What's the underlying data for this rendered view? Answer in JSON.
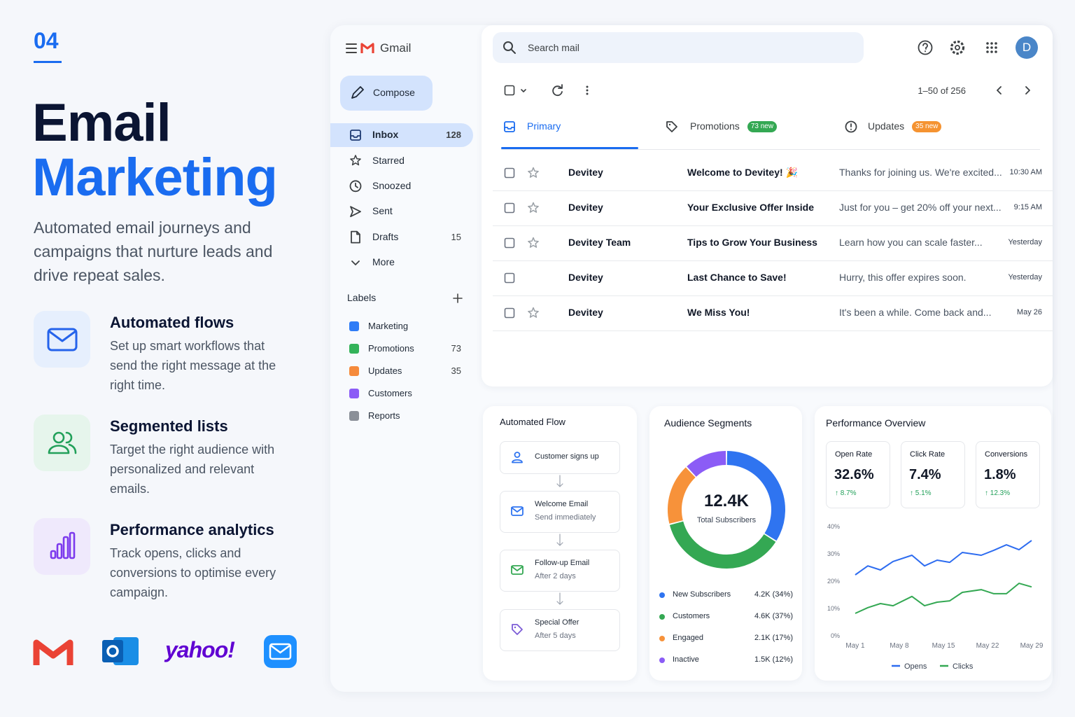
{
  "hero": {
    "number": "04",
    "title": [
      "Email",
      "Marketing"
    ],
    "description": "Automated email journeys and campaigns that nurture leads and drive repeat sales."
  },
  "features": [
    {
      "title": "Automated flows",
      "text": "Set up smart workflows that send the right message at the right time."
    },
    {
      "title": "Segmented lists",
      "text": "Target the right audience with personalized and relevant emails."
    },
    {
      "title": "Performance analytics",
      "text": "Track opens, clicks and conversions to optimise every campaign."
    }
  ],
  "brands": {
    "yahoo": "yahoo!"
  },
  "gmail": {
    "app": "Gmail",
    "compose": "Compose",
    "search": "Search mail",
    "avatar": "D",
    "pagination": "1–50 of 256",
    "nav": [
      {
        "label": "Inbox",
        "count": 128,
        "selected": true
      },
      {
        "label": "Starred"
      },
      {
        "label": "Snoozed"
      },
      {
        "label": "Sent"
      },
      {
        "label": "Drafts",
        "count": 15
      },
      {
        "label": "More"
      }
    ],
    "labels_heading": "Labels",
    "labels": [
      {
        "name": "Marketing",
        "color": "#2f7cf6"
      },
      {
        "name": "Promotions",
        "color": "#34b35a",
        "count": 73
      },
      {
        "name": "Updates",
        "color": "#f58a3c",
        "count": 35
      },
      {
        "name": "Customers",
        "color": "#8b5cf6"
      },
      {
        "name": "Reports",
        "color": "#8a8f98"
      }
    ],
    "tabs": [
      {
        "name": "Primary",
        "selected": true
      },
      {
        "name": "Promotions",
        "badge": "73 new",
        "badge_color": "#34a853"
      },
      {
        "name": "Updates",
        "badge": "35 new",
        "badge_color": "#f59331"
      }
    ],
    "emails": [
      {
        "sender": "Devitey",
        "subject": "Welcome to Devitey! 🎉",
        "snippet": "Thanks for joining us. We're excited...",
        "time": "10:30 AM",
        "star": true
      },
      {
        "sender": "Devitey",
        "subject": "Your Exclusive Offer Inside",
        "snippet": "Just for you – get 20% off your next...",
        "time": "9:15 AM",
        "star": true
      },
      {
        "sender": "Devitey Team",
        "subject": "Tips to Grow Your Business",
        "snippet": "Learn how you can scale faster...",
        "time": "Yesterday",
        "star": true
      },
      {
        "sender": "Devitey",
        "subject": "Last Chance to Save!",
        "snippet": "Hurry, this offer expires soon.",
        "time": "Yesterday",
        "star": false
      },
      {
        "sender": "Devitey",
        "subject": "We Miss You!",
        "snippet": "It's been a while. Come back and...",
        "time": "May 26",
        "star": true
      }
    ]
  },
  "flow": {
    "title": "Automated Flow",
    "steps": [
      {
        "title": "Customer signs up"
      },
      {
        "title": "Welcome Email",
        "detail": "Send immediately"
      },
      {
        "title": "Follow-up Email",
        "detail": "After 2 days"
      },
      {
        "title": "Special Offer",
        "detail": "After 5 days"
      }
    ]
  },
  "metrics": [
    {
      "label": "Open Rate",
      "value": "32.6%",
      "change": "↑ 8.7%"
    },
    {
      "label": "Click Rate",
      "value": "7.4%",
      "change": "↑ 5.1%"
    },
    {
      "label": "Conversions",
      "value": "1.8%",
      "change": "↑ 12.3%"
    }
  ],
  "chart_data": [
    {
      "type": "donut",
      "title": "Audience Segments",
      "center_value": "12.4K",
      "center_label": "Total Subscribers",
      "categories": [
        "New Subscribers",
        "Customers",
        "Engaged",
        "Inactive"
      ],
      "values": [
        34,
        37,
        17,
        12
      ],
      "value_labels": [
        "4.2K (34%)",
        "4.6K (37%)",
        "2.1K (17%)",
        "1.5K (12%)"
      ],
      "colors": [
        "#2f74f0",
        "#34a853",
        "#f7923a",
        "#8b5cf6"
      ]
    },
    {
      "type": "line",
      "title": "Performance Overview",
      "x": [
        1,
        3,
        5,
        7,
        10,
        12,
        14,
        16,
        18,
        21,
        23,
        25,
        27,
        29
      ],
      "xlim": [
        1,
        29
      ],
      "xticks": [
        {
          "value": 1,
          "label": "May 1"
        },
        {
          "value": 8,
          "label": "May 8"
        },
        {
          "value": 15,
          "label": "May 15"
        },
        {
          "value": 22,
          "label": "May 22"
        },
        {
          "value": 29,
          "label": "May 29"
        }
      ],
      "ylim": [
        0,
        40
      ],
      "yticks": [
        {
          "value": 0,
          "label": "0%"
        },
        {
          "value": 10,
          "label": "10%"
        },
        {
          "value": 20,
          "label": "20%"
        },
        {
          "value": 30,
          "label": "30%"
        },
        {
          "value": 40,
          "label": "40%"
        }
      ],
      "grid": false,
      "legend": "bottom",
      "series": [
        {
          "name": "Opens",
          "color": "#2d6cf0",
          "values": [
            22.3,
            25.6,
            24.1,
            27.2,
            29.5,
            25.6,
            27.7,
            26.9,
            30.5,
            29.5,
            31.3,
            33.3,
            31.5,
            34.9
          ]
        },
        {
          "name": "Clicks",
          "color": "#34a853",
          "values": [
            8.2,
            10.3,
            11.8,
            11.0,
            14.4,
            11.0,
            12.3,
            12.8,
            15.9,
            16.9,
            15.4,
            15.4,
            19.2,
            17.9
          ]
        }
      ]
    }
  ]
}
